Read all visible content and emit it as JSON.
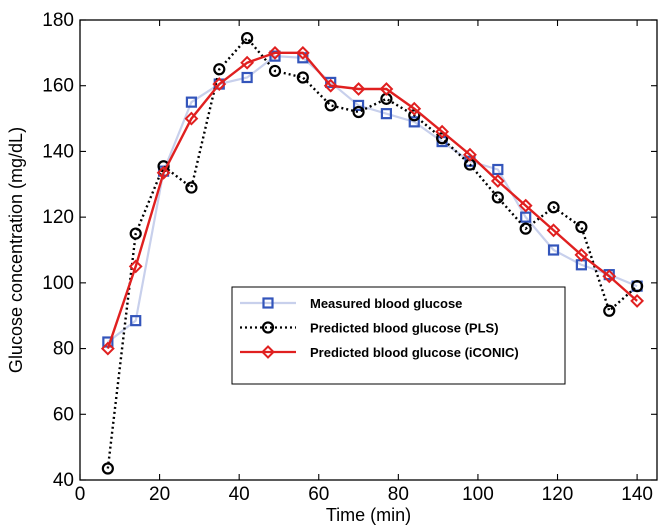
{
  "chart_data": {
    "type": "line",
    "xlabel": "Time (min)",
    "ylabel": "Glucose concentration (mg/dL)",
    "xlim": [
      0,
      145
    ],
    "ylim": [
      40,
      180
    ],
    "xticks": [
      0,
      20,
      40,
      60,
      80,
      100,
      120,
      140
    ],
    "yticks": [
      40,
      60,
      80,
      100,
      120,
      140,
      160,
      180
    ],
    "grid": false,
    "legend_position": "bottom-center",
    "series": [
      {
        "name": "Measured blood glucose",
        "color": "#3355bb",
        "line_color": "#c8d0ec",
        "marker": "square",
        "line_style": "solid",
        "x": [
          7,
          14,
          21,
          28,
          35,
          42,
          49,
          56,
          63,
          70,
          77,
          84,
          91,
          98,
          105,
          112,
          119,
          126,
          133,
          140
        ],
        "y": [
          82,
          88.5,
          134,
          155,
          160.5,
          162.5,
          169,
          168.5,
          161,
          154,
          151.5,
          149,
          143,
          137,
          134.5,
          120,
          110,
          105.5,
          102.5,
          99
        ]
      },
      {
        "name": "Predicted blood glucose (PLS)",
        "color": "#000000",
        "line_color": "#000000",
        "marker": "circle",
        "line_style": "dotted",
        "x": [
          7,
          14,
          21,
          28,
          35,
          42,
          49,
          56,
          63,
          70,
          77,
          84,
          91,
          98,
          105,
          112,
          119,
          126,
          133,
          140
        ],
        "y": [
          43.5,
          115,
          135.5,
          129,
          165,
          174.5,
          164.5,
          162.5,
          154,
          152,
          156,
          151,
          144,
          136,
          126,
          116.5,
          123,
          117,
          91.5,
          99
        ]
      },
      {
        "name": "Predicted blood glucose (iCONIC)",
        "color": "#e02020",
        "line_color": "#e02020",
        "marker": "diamond",
        "line_style": "solid",
        "x": [
          7,
          14,
          21,
          28,
          35,
          42,
          49,
          56,
          63,
          70,
          77,
          84,
          91,
          98,
          105,
          112,
          119,
          126,
          133,
          140
        ],
        "y": [
          80,
          105,
          133.5,
          150,
          160.5,
          167,
          170,
          170,
          160,
          159,
          159,
          153,
          146,
          139,
          131,
          123.5,
          116,
          108.5,
          102,
          94.5
        ]
      }
    ]
  }
}
